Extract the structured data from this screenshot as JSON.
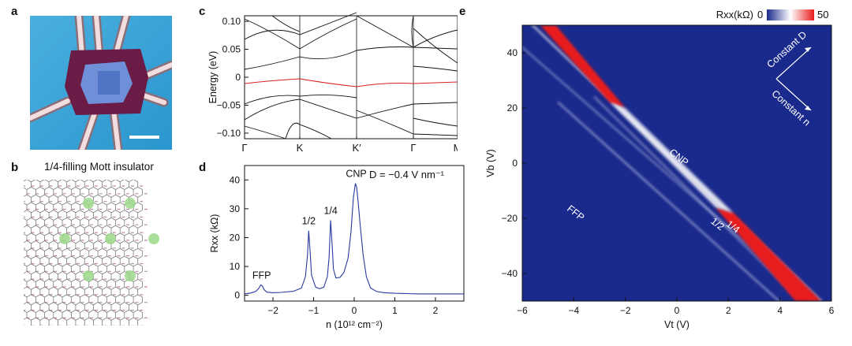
{
  "panels": {
    "a": {
      "label": "a"
    },
    "b": {
      "label": "b",
      "title": "1/4-filling Mott insulator"
    },
    "c": {
      "label": "c"
    },
    "d": {
      "label": "d"
    },
    "e": {
      "label": "e"
    }
  },
  "chart_data": [
    {
      "type": "line",
      "panel": "c",
      "ylabel": "Energy (eV)",
      "ylim": [
        -0.11,
        0.11
      ],
      "x_ticks": [
        "Γ",
        "K",
        "K′",
        "Γ",
        "M"
      ],
      "y_ticks": [
        "0.10",
        "0.05",
        "0",
        "−0.05",
        "−0.10"
      ],
      "y_tick_values": [
        0.1,
        0.05,
        0,
        -0.05,
        -0.1
      ],
      "highlight_color": "#d42020",
      "line_color": "#111111"
    },
    {
      "type": "line",
      "panel": "d",
      "xlabel": "n (10¹² cm⁻²)",
      "ylabel": "Rxx (kΩ)",
      "xlim": [
        -2.7,
        2.7
      ],
      "ylim": [
        -2,
        45
      ],
      "x_ticks": [
        "−2",
        "−1",
        "0",
        "1",
        "2"
      ],
      "x_tick_values": [
        -2,
        -1,
        0,
        1,
        2
      ],
      "y_ticks": [
        "0",
        "10",
        "20",
        "30",
        "40"
      ],
      "y_tick_values": [
        0,
        10,
        20,
        30,
        40
      ],
      "annotation": "D = −0.4 V nm⁻¹",
      "peak_labels": [
        {
          "text": "FFP",
          "x": -2.28,
          "y": 3.6
        },
        {
          "text": "1/2",
          "x": -1.12,
          "y": 22.4
        },
        {
          "text": "1/4",
          "x": -0.58,
          "y": 26.0
        },
        {
          "text": "CNP",
          "x": 0.05,
          "y": 38.8
        }
      ],
      "series": [
        {
          "color": "#2a3aa0",
          "x": [
            -2.7,
            -2.55,
            -2.42,
            -2.35,
            -2.3,
            -2.26,
            -2.22,
            -2.15,
            -2.0,
            -1.8,
            -1.5,
            -1.3,
            -1.2,
            -1.15,
            -1.12,
            -1.09,
            -1.05,
            -0.95,
            -0.85,
            -0.75,
            -0.66,
            -0.62,
            -0.58,
            -0.55,
            -0.51,
            -0.45,
            -0.35,
            -0.25,
            -0.15,
            -0.08,
            -0.02,
            0.03,
            0.06,
            0.1,
            0.15,
            0.22,
            0.3,
            0.4,
            0.55,
            0.75,
            1.0,
            1.3,
            1.6,
            2.0,
            2.4,
            2.7
          ],
          "y": [
            0.5,
            0.8,
            1.4,
            2.4,
            3.6,
            3.2,
            2.0,
            1.1,
            0.9,
            1.0,
            1.4,
            2.5,
            6.5,
            14.0,
            22.4,
            16.0,
            7.0,
            2.8,
            2.3,
            2.8,
            6.5,
            13.0,
            26.0,
            19.0,
            9.0,
            6.0,
            6.2,
            8.0,
            13.0,
            22.0,
            34.0,
            38.8,
            37.5,
            32.0,
            24.0,
            14.0,
            6.5,
            2.6,
            1.3,
            0.9,
            0.7,
            0.6,
            0.5,
            0.5,
            0.5,
            0.5
          ]
        }
      ]
    },
    {
      "type": "heatmap",
      "panel": "e",
      "xlabel": "Vt (V)",
      "ylabel": "Vb (V)",
      "xlim": [
        -6,
        6
      ],
      "ylim": [
        -50,
        50
      ],
      "x_ticks": [
        "−6",
        "−4",
        "−2",
        "0",
        "2",
        "4",
        "6"
      ],
      "x_tick_values": [
        -6,
        -4,
        -2,
        0,
        2,
        4,
        6
      ],
      "y_ticks": [
        "40",
        "20",
        "0",
        "−20",
        "−40"
      ],
      "y_tick_values": [
        40,
        20,
        0,
        -20,
        -40
      ],
      "colorbar": {
        "label": "Rxx(kΩ)",
        "min_label": "0",
        "max_label": "50",
        "colors": [
          "#1a2a8c",
          "#ffffff",
          "#e81c1c"
        ]
      },
      "line_labels": [
        "CNP",
        "FFP",
        "1/2",
        "1/4"
      ],
      "arrow_labels": [
        "Constant D",
        "Constant n"
      ]
    }
  ]
}
